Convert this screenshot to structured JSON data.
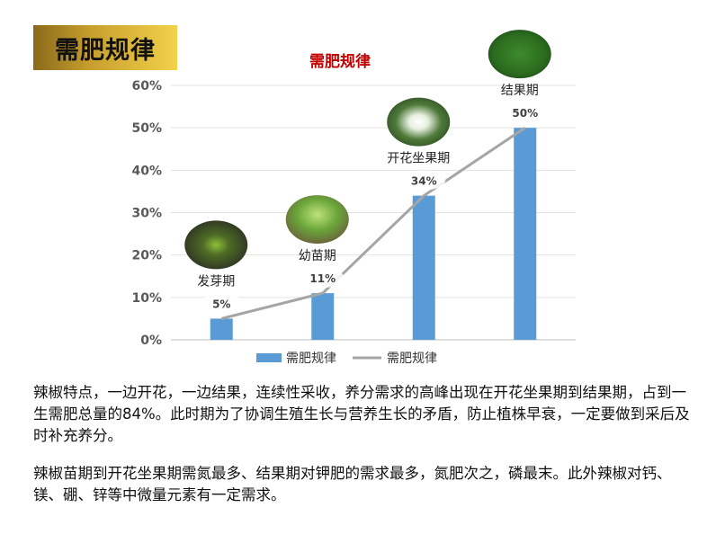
{
  "badge": {
    "text": "需肥规律"
  },
  "chart_data": {
    "type": "bar",
    "title": "需肥规律",
    "categories": [
      "发芽期",
      "幼苗期",
      "开花坐果期",
      "结果期"
    ],
    "series": [
      {
        "name": "需肥规律",
        "kind": "bar",
        "values": [
          5,
          11,
          34,
          50
        ]
      },
      {
        "name": "需肥规律",
        "kind": "line",
        "values": [
          5,
          11,
          34,
          50
        ]
      }
    ],
    "data_labels": [
      "5%",
      "11%",
      "34%",
      "50%"
    ],
    "y_ticks": [
      "0%",
      "10%",
      "20%",
      "30%",
      "40%",
      "50%",
      "60%"
    ],
    "ylim": [
      0,
      60
    ],
    "grid": true,
    "legend": "bottom",
    "colors": {
      "bar": "#5b9bd5",
      "line": "#a5a5a5",
      "title": "#c00000"
    },
    "stage_images": [
      "seed-sprout-photo",
      "seedling-photo",
      "flower-photo",
      "pepper-fruit-photo"
    ]
  },
  "text": {
    "p1": "辣椒特点，一边开花，一边结果，连续性采收，养分需求的高峰出现在开花坐果期到结果期，占到一生需肥总量的84%。此时期为了协调生殖生长与营养生长的矛盾，防止植株早衰，一定要做到采后及时补充养分。",
    "p2": "辣椒苗期到开花坐果期需氮最多、结果期对钾肥的需求最多，氮肥次之，磷最末。此外辣椒对钙、镁、硼、锌等中微量元素有一定需求。"
  }
}
